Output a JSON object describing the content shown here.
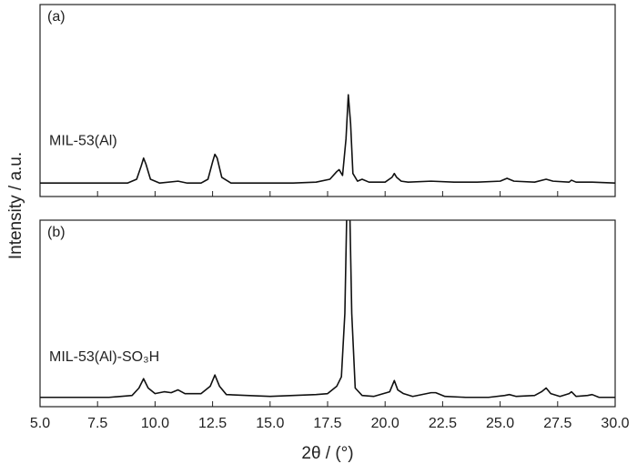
{
  "y_label": "Intensity / a.u.",
  "chart_data": [
    {
      "type": "line",
      "panel": "(a)",
      "series": [
        {
          "name": "MIL-53(Al)",
          "color": "#111111",
          "x": [
            5.0,
            6.0,
            7.0,
            8.0,
            8.8,
            9.2,
            9.4,
            9.5,
            9.6,
            9.8,
            10.2,
            11.0,
            11.4,
            12.0,
            12.3,
            12.5,
            12.6,
            12.7,
            12.9,
            13.3,
            15.0,
            16.0,
            17.0,
            17.6,
            17.9,
            18.0,
            18.15,
            18.3,
            18.4,
            18.5,
            18.6,
            18.8,
            19.0,
            19.3,
            20.0,
            20.3,
            20.4,
            20.5,
            20.7,
            21.0,
            22.0,
            23.0,
            24.0,
            25.0,
            25.3,
            25.6,
            26.5,
            27.0,
            27.3,
            28.0,
            28.1,
            28.3,
            29.0,
            30.0
          ],
          "values": [
            7,
            7,
            7,
            7,
            7,
            9,
            16,
            20,
            17,
            9,
            7,
            8,
            7,
            7,
            9,
            18,
            22,
            20,
            10,
            7,
            7,
            7,
            7.5,
            9,
            13,
            14,
            11,
            30,
            53,
            38,
            12,
            8,
            9,
            7.5,
            7.5,
            10,
            12,
            10,
            8,
            7.5,
            8,
            7.5,
            7.5,
            8,
            9.5,
            8,
            7.5,
            9,
            8,
            7.5,
            8.5,
            7.5,
            7.5,
            7
          ]
        }
      ],
      "xlim": [
        5.0,
        30.0
      ],
      "ylim": [
        0,
        100
      ]
    },
    {
      "type": "line",
      "panel": "(b)",
      "series": [
        {
          "name": "MIL-53(Al)-SO₃H",
          "color": "#111111",
          "x": [
            5.0,
            6.0,
            7.0,
            8.0,
            9.0,
            9.3,
            9.5,
            9.7,
            10.0,
            10.4,
            10.7,
            11.0,
            11.3,
            12.0,
            12.4,
            12.6,
            12.8,
            13.1,
            14.0,
            15.0,
            16.0,
            17.0,
            17.5,
            17.9,
            18.1,
            18.25,
            18.35,
            18.45,
            18.55,
            18.7,
            19.0,
            19.5,
            20.2,
            20.4,
            20.55,
            20.8,
            21.2,
            22.0,
            22.2,
            22.6,
            23.5,
            24.5,
            25.2,
            25.4,
            25.7,
            26.5,
            26.8,
            27.0,
            27.2,
            27.6,
            28.0,
            28.1,
            28.3,
            28.8,
            29.0,
            29.3,
            30.0
          ],
          "values": [
            5,
            5,
            5,
            5,
            6,
            10,
            15,
            10,
            7,
            8,
            7.5,
            9,
            7,
            7,
            11,
            17,
            11,
            6.5,
            6,
            5.5,
            6,
            6.5,
            7,
            11,
            16,
            50,
            115,
            115,
            50,
            10,
            6,
            5.5,
            8,
            14,
            9,
            7,
            5.5,
            7.5,
            7.5,
            5.5,
            5,
            5,
            6,
            6.5,
            5.5,
            6,
            8,
            10,
            7,
            5.5,
            7,
            8,
            5.5,
            6,
            6.5,
            5,
            5
          ]
        }
      ],
      "xlim": [
        5.0,
        30.0
      ],
      "ylim": [
        0,
        100
      ],
      "x_label": "2θ / (°)",
      "xticks": [
        {
          "value": 5,
          "label": "5.0"
        },
        {
          "value": 7.5,
          "label": "7.5"
        },
        {
          "value": 10,
          "label": "10.0"
        },
        {
          "value": 12.5,
          "label": "12.5"
        },
        {
          "value": 15,
          "label": "15.0"
        },
        {
          "value": 17.5,
          "label": "17.5"
        },
        {
          "value": 20,
          "label": "20.0"
        },
        {
          "value": 22.5,
          "label": "22.5"
        },
        {
          "value": 25,
          "label": "25.0"
        },
        {
          "value": 27.5,
          "label": "27.5"
        },
        {
          "value": 30,
          "label": "30.0"
        }
      ]
    }
  ]
}
